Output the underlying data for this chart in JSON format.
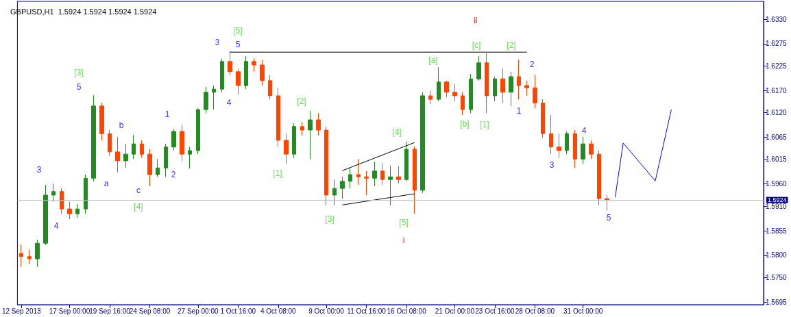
{
  "chart_data": {
    "type": "candlestick",
    "title": "GBPUSD,H1  1.5924 1.5924 1.5924 1.5924",
    "categories": [
      "12 Sep 2013",
      null,
      null,
      null,
      null,
      null,
      "17 Sep 00:00",
      null,
      null,
      null,
      null,
      "19 Sep 16:00",
      null,
      null,
      null,
      null,
      "24 Sep 08:00",
      null,
      null,
      null,
      null,
      null,
      "27 Sep 00:00",
      null,
      null,
      null,
      null,
      "1 Oct 16:00",
      null,
      null,
      null,
      null,
      "4 Oct 08:00",
      null,
      null,
      null,
      null,
      null,
      "9 Oct 00:00",
      null,
      null,
      null,
      null,
      "11 Oct 16:00",
      null,
      null,
      null,
      null,
      "16 Oct 08:00",
      null,
      null,
      null,
      null,
      null,
      "21 Oct 00:00",
      null,
      null,
      null,
      null,
      "23 Oct 16:00",
      null,
      null,
      null,
      null,
      "28 Oct 08:00",
      null,
      null,
      null,
      null,
      null,
      "31 Oct 00:00",
      null,
      null,
      null,
      null,
      null,
      null,
      null,
      null,
      null,
      null,
      null,
      null,
      null,
      null,
      null,
      null,
      null,
      null,
      null,
      null,
      null,
      null
    ],
    "ohlc": [
      [
        1.5804,
        1.5824,
        1.5774,
        1.5797
      ],
      [
        1.5797,
        1.5812,
        1.5781,
        1.5792
      ],
      [
        1.5792,
        1.5835,
        1.5774,
        1.5827
      ],
      [
        1.5827,
        1.5958,
        1.5823,
        1.5935
      ],
      [
        1.5935,
        1.5961,
        1.592,
        1.5943
      ],
      [
        1.5943,
        1.595,
        1.5893,
        1.5904
      ],
      [
        1.5904,
        1.592,
        1.5881,
        1.5893
      ],
      [
        1.5893,
        1.5915,
        1.5884,
        1.5904
      ],
      [
        1.5904,
        1.5981,
        1.5893,
        1.5973
      ],
      [
        1.5973,
        1.6159,
        1.5966,
        1.6135
      ],
      [
        1.6135,
        1.6142,
        1.6058,
        1.6073
      ],
      [
        1.6073,
        1.6081,
        1.6023,
        1.6032
      ],
      [
        1.6032,
        1.6066,
        1.5986,
        1.6012
      ],
      [
        1.6012,
        1.605,
        1.5996,
        1.6027
      ],
      [
        1.6027,
        1.607,
        1.6016,
        1.605
      ],
      [
        1.605,
        1.6058,
        1.6019,
        1.6027
      ],
      [
        1.6027,
        1.6038,
        1.5955,
        1.5981
      ],
      [
        1.5981,
        1.6016,
        1.5976,
        1.5996
      ],
      [
        1.5996,
        1.605,
        1.5976,
        1.6043
      ],
      [
        1.6043,
        1.6084,
        1.6035,
        1.6078
      ],
      [
        1.6078,
        1.6093,
        1.6012,
        1.6027
      ],
      [
        1.6027,
        1.6043,
        1.5995,
        1.6035
      ],
      [
        1.6035,
        1.613,
        1.6027,
        1.6127
      ],
      [
        1.6127,
        1.6178,
        1.6119,
        1.6166
      ],
      [
        1.6166,
        1.6181,
        1.6127,
        1.6173
      ],
      [
        1.6173,
        1.6242,
        1.6166,
        1.6235
      ],
      [
        1.6235,
        1.6258,
        1.6204,
        1.6212
      ],
      [
        1.6212,
        1.6219,
        1.6161,
        1.6181
      ],
      [
        1.6181,
        1.6247,
        1.6173,
        1.6235
      ],
      [
        1.6235,
        1.6242,
        1.6212,
        1.6227
      ],
      [
        1.6227,
        1.6238,
        1.6181,
        1.6192
      ],
      [
        1.6192,
        1.6204,
        1.615,
        1.6158
      ],
      [
        1.6158,
        1.6176,
        1.6043,
        1.6058
      ],
      [
        1.6058,
        1.6073,
        1.6004,
        1.6027
      ],
      [
        1.6027,
        1.6096,
        1.6019,
        1.6089
      ],
      [
        1.6089,
        1.6099,
        1.6069,
        1.6081
      ],
      [
        1.6081,
        1.6124,
        1.6016,
        1.6104
      ],
      [
        1.6104,
        1.6119,
        1.6069,
        1.6081
      ],
      [
        1.6081,
        1.6089,
        1.5912,
        1.5935
      ],
      [
        1.5935,
        1.597,
        1.5912,
        1.595
      ],
      [
        1.595,
        1.5976,
        1.5927,
        1.5966
      ],
      [
        1.5966,
        1.5996,
        1.595,
        1.5981
      ],
      [
        1.5981,
        1.6016,
        1.5958,
        1.5976
      ],
      [
        1.5976,
        1.5989,
        1.5935,
        1.5973
      ],
      [
        1.5973,
        1.601,
        1.5955,
        1.5989
      ],
      [
        1.5989,
        1.6007,
        1.5958,
        1.597
      ],
      [
        1.597,
        1.6001,
        1.5912,
        1.5976
      ],
      [
        1.5976,
        1.6,
        1.5961,
        1.597
      ],
      [
        1.597,
        1.6055,
        1.5966,
        1.6038
      ],
      [
        1.6038,
        1.6044,
        1.5893,
        1.5946
      ],
      [
        1.5946,
        1.6166,
        1.594,
        1.6158
      ],
      [
        1.6158,
        1.617,
        1.6139,
        1.615
      ],
      [
        1.615,
        1.6222,
        1.6146,
        1.6189
      ],
      [
        1.6189,
        1.6192,
        1.6155,
        1.6166
      ],
      [
        1.6166,
        1.6185,
        1.6146,
        1.6158
      ],
      [
        1.6158,
        1.6166,
        1.6115,
        1.6127
      ],
      [
        1.6127,
        1.6207,
        1.6119,
        1.6196
      ],
      [
        1.6196,
        1.6247,
        1.6192,
        1.6232
      ],
      [
        1.6232,
        1.6253,
        1.6119,
        1.6158
      ],
      [
        1.6158,
        1.6201,
        1.6146,
        1.6196
      ],
      [
        1.6196,
        1.6219,
        1.6142,
        1.6166
      ],
      [
        1.6166,
        1.6212,
        1.6135,
        1.6201
      ],
      [
        1.6201,
        1.6239,
        1.615,
        1.6181
      ],
      [
        1.6181,
        1.6192,
        1.6158,
        1.6176
      ],
      [
        1.6176,
        1.6205,
        1.613,
        1.6142
      ],
      [
        1.6142,
        1.615,
        1.6063,
        1.6073
      ],
      [
        1.6073,
        1.6115,
        1.6027,
        1.6043
      ],
      [
        1.6043,
        1.6073,
        1.6019,
        1.6035
      ],
      [
        1.6035,
        1.6078,
        1.6027,
        1.6073
      ],
      [
        1.6073,
        1.6081,
        1.5996,
        1.6016
      ],
      [
        1.6016,
        1.6066,
        1.6004,
        1.605
      ],
      [
        1.605,
        1.6058,
        1.6016,
        1.6027
      ],
      [
        1.6027,
        1.6035,
        1.5912,
        1.5927
      ],
      [
        1.5927,
        1.5935,
        1.59,
        1.5924
      ],
      null,
      null,
      null,
      null,
      null,
      null,
      null,
      null,
      null,
      null,
      null,
      null,
      null,
      null,
      null,
      null,
      null,
      null,
      null
    ],
    "colors": [
      "#ff4500",
      "#ff4500",
      "#228b22",
      "#228b22",
      "#228b22",
      "#ff4500",
      "#ff4500",
      "#228b22",
      "#228b22",
      "#228b22",
      "#ff4500",
      "#ff4500",
      "#ff4500",
      "#228b22",
      "#228b22",
      "#ff4500",
      "#ff4500",
      "#228b22",
      "#228b22",
      "#228b22",
      "#ff4500",
      "#228b22",
      "#228b22",
      "#228b22",
      "#228b22",
      "#228b22",
      "#ff4500",
      "#ff4500",
      "#228b22",
      "#ff4500",
      "#ff4500",
      "#ff4500",
      "#ff4500",
      "#ff4500",
      "#228b22",
      "#ff4500",
      "#228b22",
      "#ff4500",
      "#ff4500",
      "#228b22",
      "#228b22",
      "#228b22",
      "#ff4500",
      "#ff4500",
      "#228b22",
      "#ff4500",
      "#228b22",
      "#ff4500",
      "#228b22",
      "#ff4500",
      "#228b22",
      "#ff4500",
      "#228b22",
      "#ff4500",
      "#ff4500",
      "#ff4500",
      "#228b22",
      "#228b22",
      "#ff4500",
      "#228b22",
      "#ff4500",
      "#228b22",
      "#ff4500",
      "#ff4500",
      "#ff4500",
      "#ff4500",
      "#ff4500",
      "#ff4500",
      "#228b22",
      "#ff4500",
      "#228b22",
      "#ff4500",
      "#ff4500",
      "#ff4500",
      null,
      null,
      null,
      null,
      null,
      null,
      null,
      null,
      null,
      null,
      null,
      null,
      null,
      null,
      null,
      null,
      null,
      null,
      null
    ],
    "series": [
      {
        "type": "line",
        "color": "#000000",
        "values": [
          null,
          null,
          null,
          null,
          null,
          null,
          null,
          null,
          null,
          null,
          null,
          null,
          null,
          null,
          null,
          null,
          null,
          null,
          null,
          null,
          null,
          null,
          null,
          null,
          null,
          null,
          1.6256,
          null,
          null,
          null,
          null,
          null,
          null,
          null,
          null,
          null,
          null,
          null,
          null,
          null,
          null,
          null,
          null,
          null,
          null,
          null,
          null,
          null,
          null,
          null,
          null,
          null,
          null,
          null,
          null,
          null,
          null,
          null,
          null,
          null,
          null,
          null,
          null,
          1.6256,
          null,
          null,
          null,
          null,
          null,
          null,
          null,
          null,
          null,
          null,
          null,
          null,
          null,
          null,
          null,
          null,
          null,
          null,
          null,
          null,
          null,
          null,
          null,
          null,
          null,
          null,
          null,
          null,
          null
        ]
      },
      {
        "type": "line",
        "color": "#000000",
        "values": [
          null,
          null,
          null,
          null,
          null,
          null,
          null,
          null,
          null,
          null,
          null,
          null,
          null,
          null,
          null,
          null,
          null,
          null,
          null,
          null,
          null,
          null,
          null,
          null,
          null,
          null,
          null,
          null,
          null,
          null,
          null,
          null,
          null,
          null,
          null,
          null,
          null,
          null,
          null,
          null,
          1.599,
          null,
          null,
          null,
          null,
          null,
          null,
          null,
          null,
          1.6053,
          null,
          null,
          null,
          null,
          null,
          null,
          null,
          null,
          null,
          null,
          null,
          null,
          null,
          null,
          null,
          null,
          null,
          null,
          null,
          null,
          null,
          null,
          null,
          null,
          null,
          null,
          null,
          null,
          null,
          null,
          null,
          null,
          null,
          null,
          null,
          null,
          null,
          null,
          null,
          null,
          null,
          null,
          null
        ]
      },
      {
        "type": "line",
        "color": "#000000",
        "values": [
          null,
          null,
          null,
          null,
          null,
          null,
          null,
          null,
          null,
          null,
          null,
          null,
          null,
          null,
          null,
          null,
          null,
          null,
          null,
          null,
          null,
          null,
          null,
          null,
          null,
          null,
          null,
          null,
          null,
          null,
          null,
          null,
          null,
          null,
          null,
          null,
          null,
          null,
          null,
          null,
          1.5913,
          null,
          null,
          null,
          null,
          null,
          null,
          null,
          null,
          1.5938,
          null,
          null,
          null,
          null,
          null,
          null,
          null,
          null,
          null,
          null,
          null,
          null,
          null,
          null,
          null,
          null,
          null,
          null,
          null,
          null,
          null,
          null,
          null,
          null,
          null,
          null,
          null,
          null,
          null,
          null,
          null,
          null,
          null,
          null,
          null,
          null,
          null,
          null,
          null,
          null,
          null,
          null,
          null
        ]
      },
      {
        "type": "line",
        "color": "#0000ff",
        "values": [
          null,
          null,
          null,
          null,
          null,
          null,
          null,
          null,
          null,
          null,
          null,
          null,
          null,
          null,
          null,
          null,
          null,
          null,
          null,
          null,
          null,
          null,
          null,
          null,
          null,
          null,
          null,
          null,
          null,
          null,
          null,
          null,
          null,
          null,
          null,
          null,
          null,
          null,
          null,
          null,
          null,
          null,
          null,
          null,
          null,
          null,
          null,
          null,
          null,
          null,
          null,
          null,
          null,
          null,
          null,
          null,
          null,
          null,
          null,
          null,
          null,
          null,
          null,
          null,
          null,
          null,
          null,
          null,
          null,
          null,
          null,
          null,
          null,
          null,
          1.593,
          1.6052,
          null,
          null,
          null,
          1.5967,
          null,
          1.6127,
          null,
          null,
          null,
          null,
          null,
          null,
          null,
          null,
          null,
          null,
          null
        ]
      }
    ],
    "ylim": [
      1.5689,
      1.637
    ],
    "yticks": [
      {
        "value": 1.5695,
        "label": "1.5695"
      },
      {
        "value": 1.575,
        "label": "1.5750"
      },
      {
        "value": 1.58,
        "label": "1.5800"
      },
      {
        "value": 1.5855,
        "label": "1.5855"
      },
      {
        "value": 1.591,
        "label": "1.5910"
      },
      {
        "value": 1.596,
        "label": "1.5960"
      },
      {
        "value": 1.6015,
        "label": "1.6015"
      },
      {
        "value": 1.6065,
        "label": "1.6065"
      },
      {
        "value": 1.612,
        "label": "1.6120"
      },
      {
        "value": 1.617,
        "label": "1.6170"
      },
      {
        "value": 1.6225,
        "label": "1.6225"
      },
      {
        "value": 1.6275,
        "label": "1.6275"
      },
      {
        "value": 1.633,
        "label": "1.6330"
      }
    ],
    "ref_lines": [
      {
        "axis": "y",
        "value": 1.5924,
        "label": "1.5924",
        "color": "#c0c0c0"
      }
    ],
    "annotations": [
      "[5]",
      "3",
      "5",
      "[3]",
      "5",
      "3",
      "4",
      "a",
      "b",
      "c",
      "[4]",
      "1",
      "2",
      "4",
      "[1]",
      "[2]",
      "[3]",
      "[4]",
      "[5]",
      "i",
      "[a]",
      "ii",
      "[c]",
      "[b]",
      "[1]",
      "[2]",
      "1",
      "2",
      "3",
      "4",
      "5"
    ]
  }
}
